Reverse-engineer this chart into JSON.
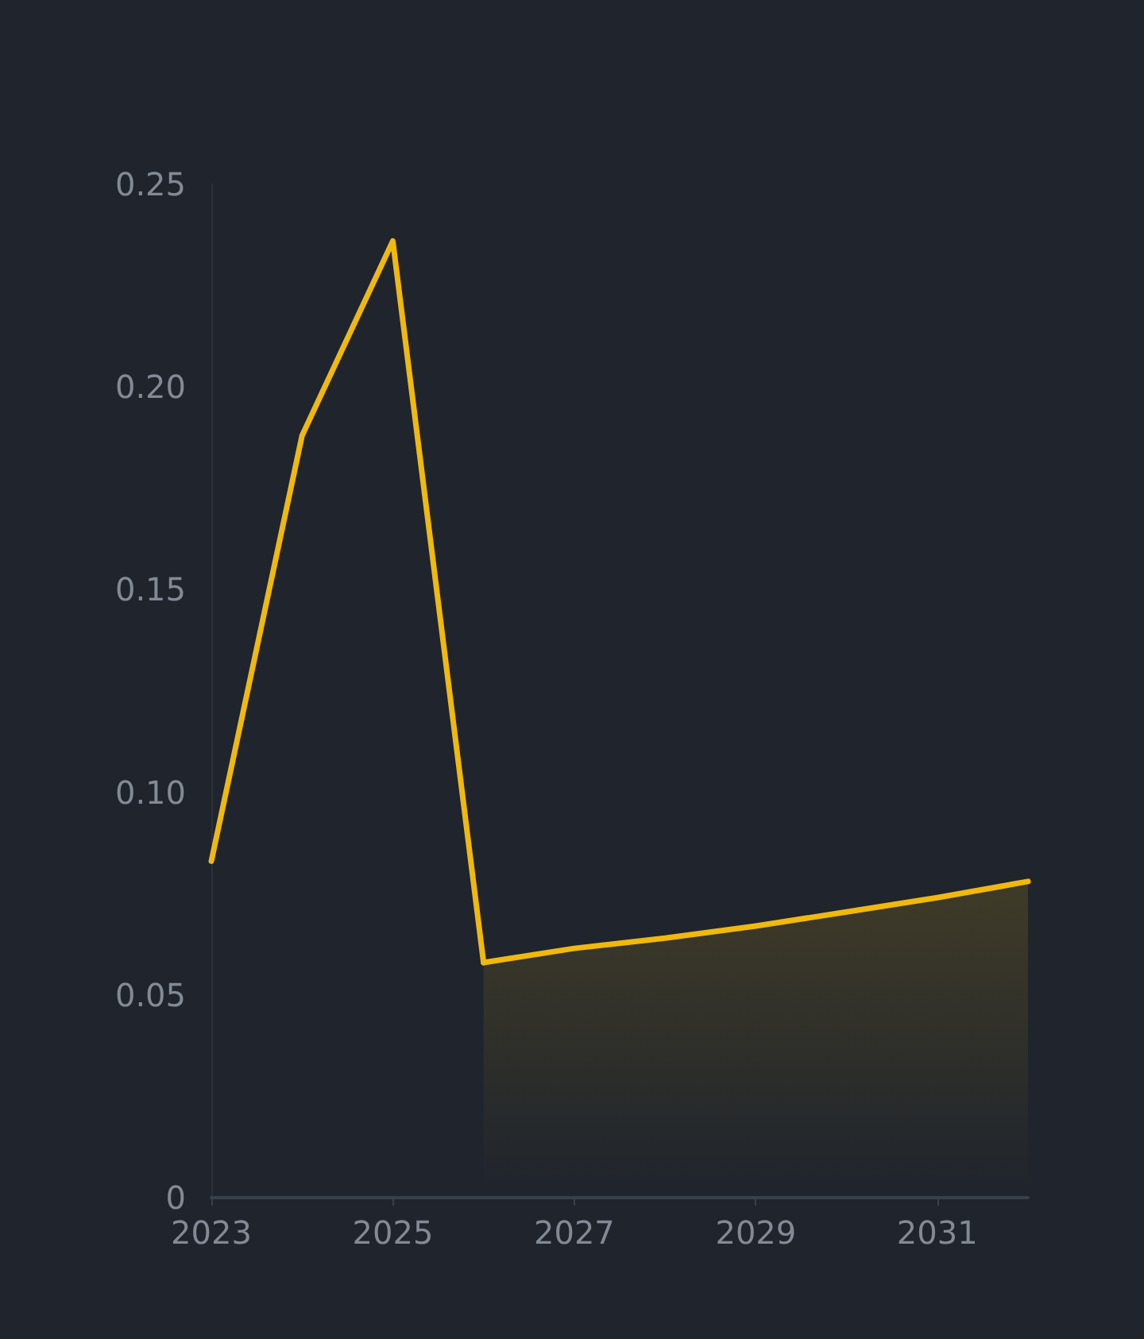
{
  "chart_data": {
    "type": "line",
    "xlim": [
      2023,
      2032
    ],
    "xticks": [
      2023,
      2025,
      2027,
      2029,
      2031
    ],
    "ylim": [
      0,
      0.25
    ],
    "yticks": [
      0,
      {
        "value": 0.05,
        "label": "0.05"
      },
      {
        "value": 0.1,
        "label": "0.10"
      },
      {
        "value": 0.15,
        "label": "0.15"
      },
      {
        "value": 0.2,
        "label": "0.20"
      },
      {
        "value": 0.25,
        "label": "0.25"
      }
    ],
    "grid": false,
    "marker": "none",
    "line_style": "solid",
    "series": [
      {
        "color": "#f0b90b",
        "x": [
          2023,
          2024,
          2025,
          2026
        ],
        "values": [
          0.083,
          0.188,
          0.236,
          0.058
        ]
      },
      {
        "type": "area",
        "color": "#f0b90b",
        "x": [
          2026,
          2027,
          2028,
          2029,
          2030,
          2031,
          2032
        ],
        "values": [
          0.058,
          0.0615,
          0.064,
          0.067,
          0.0705,
          0.074,
          0.078
        ]
      }
    ]
  }
}
